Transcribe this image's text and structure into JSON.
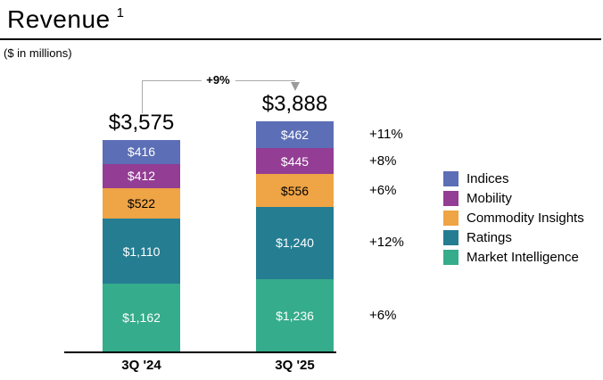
{
  "header": {
    "title": "Revenue",
    "superscript": "1",
    "subtitle": "($ in millions)"
  },
  "chart_data": {
    "type": "bar",
    "stacked": true,
    "title": "Revenue",
    "units": "$ in millions",
    "categories": [
      "3Q '24",
      "3Q '25"
    ],
    "series": [
      {
        "name": "Indices",
        "color": "#5B6EB6",
        "text_color": "#FFFFFF",
        "values": [
          416,
          462
        ],
        "labels": [
          "$416",
          "$462"
        ],
        "change": "+11%"
      },
      {
        "name": "Mobility",
        "color": "#933D94",
        "text_color": "#FFFFFF",
        "values": [
          412,
          445
        ],
        "labels": [
          "$412",
          "$445"
        ],
        "change": "+8%"
      },
      {
        "name": "Commodity Insights",
        "color": "#EFA445",
        "text_color": "#000000",
        "values": [
          522,
          556
        ],
        "labels": [
          "$522",
          "$556"
        ],
        "change": "+6%"
      },
      {
        "name": "Ratings",
        "color": "#257D92",
        "text_color": "#FFFFFF",
        "values": [
          1110,
          1240
        ],
        "labels": [
          "$1,110",
          "$1,240"
        ],
        "change": "+12%"
      },
      {
        "name": "Market Intelligence",
        "color": "#35AC8B",
        "text_color": "#FFFFFF",
        "values": [
          1162,
          1236
        ],
        "labels": [
          "$1,162",
          "$1,236"
        ],
        "change": "+6%"
      }
    ],
    "totals": {
      "values": [
        3575,
        3888
      ],
      "labels": [
        "$3,575",
        "$3,888"
      ],
      "change": "+9%"
    },
    "legend": {
      "position": "right",
      "entries": [
        "Indices",
        "Mobility",
        "Commodity Insights",
        "Ratings",
        "Market Intelligence"
      ]
    },
    "axis": {
      "x_labels": [
        "3Q '24",
        "3Q '25"
      ]
    }
  }
}
